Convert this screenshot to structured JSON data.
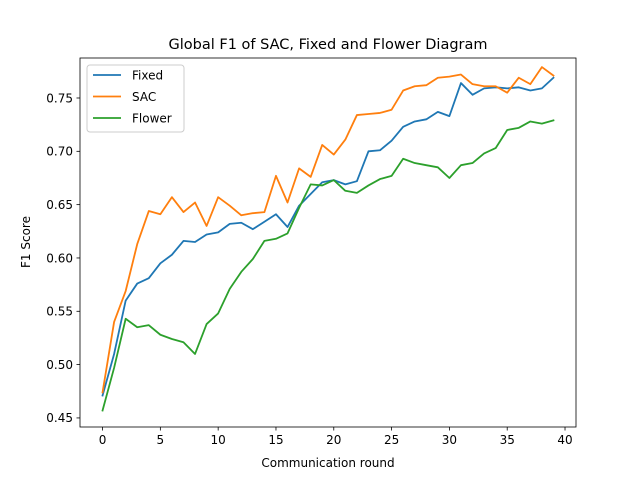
{
  "chart_data": {
    "type": "line",
    "title": "Global F1 of SAC, Fixed and Flower Diagram",
    "xlabel": "Communication round",
    "ylabel": "F1 Score",
    "xlim": [
      -1.95,
      40.95
    ],
    "ylim": [
      0.4415,
      0.7875
    ],
    "xticks": [
      0,
      5,
      10,
      15,
      20,
      25,
      30,
      35,
      40
    ],
    "xtick_labels": [
      "0",
      "5",
      "10",
      "15",
      "20",
      "25",
      "30",
      "35",
      "40"
    ],
    "yticks": [
      0.45,
      0.5,
      0.55,
      0.6,
      0.65,
      0.7,
      0.75
    ],
    "ytick_labels": [
      "0.45",
      "0.50",
      "0.55",
      "0.60",
      "0.65",
      "0.70",
      "0.75"
    ],
    "grid": false,
    "legend_position": "top-left",
    "x": [
      0,
      1,
      2,
      3,
      4,
      5,
      6,
      7,
      8,
      9,
      10,
      11,
      12,
      13,
      14,
      15,
      16,
      17,
      18,
      19,
      20,
      21,
      22,
      23,
      24,
      25,
      26,
      27,
      28,
      29,
      30,
      31,
      32,
      33,
      34,
      35,
      36,
      37,
      38,
      39
    ],
    "series": [
      {
        "name": "Fixed",
        "color": "#1f77b4",
        "values": [
          0.471,
          0.51,
          0.56,
          0.576,
          0.581,
          0.595,
          0.603,
          0.616,
          0.615,
          0.622,
          0.624,
          0.632,
          0.633,
          0.627,
          0.634,
          0.641,
          0.629,
          0.649,
          0.66,
          0.671,
          0.673,
          0.669,
          0.672,
          0.7,
          0.701,
          0.71,
          0.723,
          0.728,
          0.73,
          0.737,
          0.733,
          0.764,
          0.753,
          0.759,
          0.76,
          0.759,
          0.76,
          0.757,
          0.759,
          0.769
        ]
      },
      {
        "name": "SAC",
        "color": "#ff7f0e",
        "values": [
          0.474,
          0.54,
          0.569,
          0.613,
          0.644,
          0.641,
          0.657,
          0.643,
          0.652,
          0.63,
          0.657,
          0.649,
          0.64,
          0.642,
          0.643,
          0.677,
          0.652,
          0.684,
          0.676,
          0.706,
          0.697,
          0.711,
          0.734,
          0.735,
          0.736,
          0.739,
          0.757,
          0.761,
          0.762,
          0.769,
          0.77,
          0.772,
          0.763,
          0.761,
          0.761,
          0.755,
          0.769,
          0.763,
          0.779,
          0.771
        ]
      },
      {
        "name": "Flower",
        "color": "#2ca02c",
        "values": [
          0.457,
          0.497,
          0.543,
          0.535,
          0.537,
          0.528,
          0.524,
          0.521,
          0.51,
          0.538,
          0.548,
          0.571,
          0.587,
          0.599,
          0.616,
          0.618,
          0.623,
          0.647,
          0.669,
          0.668,
          0.673,
          0.663,
          0.661,
          0.668,
          0.674,
          0.677,
          0.693,
          0.689,
          0.687,
          0.685,
          0.675,
          0.687,
          0.689,
          0.698,
          0.703,
          0.72,
          0.722,
          0.728,
          0.726,
          0.729
        ]
      }
    ]
  }
}
